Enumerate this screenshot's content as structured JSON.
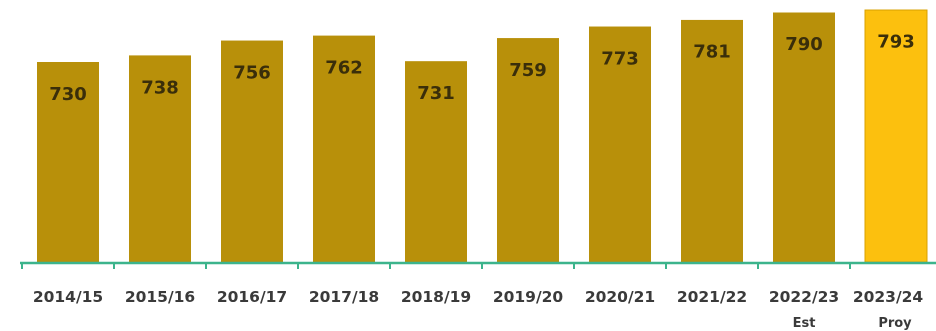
{
  "chart_data": {
    "type": "bar",
    "title": "",
    "xlabel": "",
    "ylabel": "",
    "categories": [
      "2014/15",
      "2015/16",
      "2016/17",
      "2017/18",
      "2018/19",
      "2019/20",
      "2020/21",
      "2021/22",
      "2022/23",
      "2023/24"
    ],
    "category_sublabels": [
      "",
      "",
      "",
      "",
      "",
      "",
      "",
      "",
      "Est",
      "Proy"
    ],
    "values": [
      730,
      738,
      756,
      762,
      731,
      759,
      773,
      781,
      790,
      793
    ],
    "value_labels": [
      "730",
      "738",
      "756",
      "762",
      "731",
      "759",
      "773",
      "781",
      "790",
      "793"
    ],
    "highlighted_category": "2023/24",
    "colors": {
      "bar": "#b8900a",
      "bar_highlight": "#fcc00e",
      "axis": "#3cb48c",
      "label_text": "#3a2e0a",
      "tick_text": "#3a3a3a"
    },
    "grid": false,
    "legend": "none"
  }
}
